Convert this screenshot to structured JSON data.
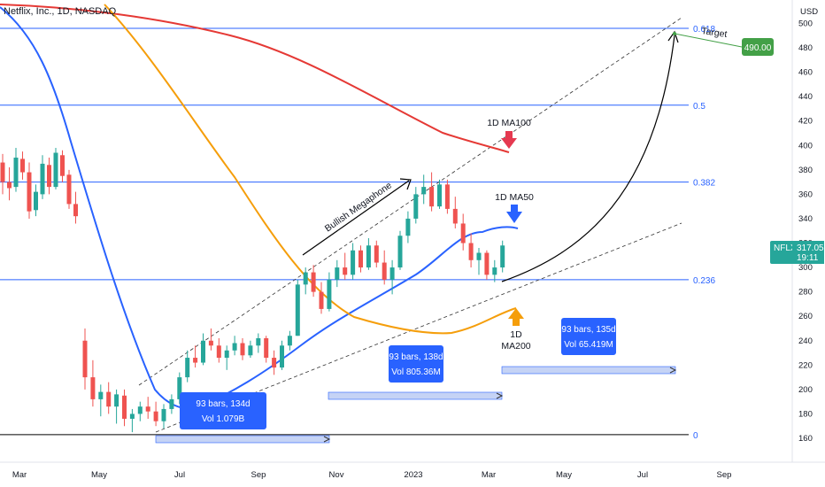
{
  "chart_data": {
    "type": "candlestick",
    "title": "Netflix, Inc., 1D, NASDAQ",
    "currency": "USD",
    "x_ticks": [
      "Mar",
      "May",
      "Jul",
      "Sep",
      "Nov",
      "2023",
      "Mar",
      "May",
      "Jul",
      "Sep"
    ],
    "y_ticks": [
      160,
      180,
      200,
      220,
      240,
      260,
      280,
      300,
      320,
      340,
      360,
      380,
      400,
      420,
      440,
      460,
      480,
      500
    ],
    "ylim": [
      150,
      510
    ],
    "fib_levels": [
      {
        "label": "0.618",
        "price": 496
      },
      {
        "label": "0.5",
        "price": 433
      },
      {
        "label": "0.382",
        "price": 370
      },
      {
        "label": "0.236",
        "price": 290
      },
      {
        "label": "0",
        "price": 163
      }
    ],
    "price_tag": {
      "symbol": "NFLX",
      "value": "317.05",
      "time": "19:11",
      "color": "#26a69a"
    },
    "target_tag": {
      "value": "490.00",
      "label": "Target",
      "color": "#43a047"
    },
    "annotations": {
      "megaphone": "Bullish Megaphone",
      "ma100": "1D MA100",
      "ma50": "1D MA50",
      "ma200_line1": "1D",
      "ma200_line2": "MA200"
    },
    "ranges": [
      {
        "line1": "93 bars, 134d",
        "line2": "Vol 1.079B"
      },
      {
        "line1": "93 bars, 138d",
        "line2": "Vol 805.36M"
      },
      {
        "line1": "93 bars, 135d",
        "line2": "Vol 65.419M"
      }
    ],
    "colors": {
      "up": "#26a69a",
      "down": "#ef5350",
      "ma50": "#2962ff",
      "ma100": "#e53935",
      "ma200": "#f59e0b",
      "fib": "#2962ff",
      "box": "#2962ff",
      "range": "#c5d3f5"
    },
    "candles_ohlc": [
      {
        "o": 386,
        "h": 393,
        "l": 360,
        "c": 370
      },
      {
        "o": 370,
        "h": 382,
        "l": 355,
        "c": 365
      },
      {
        "o": 366,
        "h": 398,
        "l": 362,
        "c": 390
      },
      {
        "o": 389,
        "h": 395,
        "l": 372,
        "c": 378
      },
      {
        "o": 378,
        "h": 386,
        "l": 340,
        "c": 346
      },
      {
        "o": 347,
        "h": 368,
        "l": 342,
        "c": 362
      },
      {
        "o": 360,
        "h": 392,
        "l": 356,
        "c": 385
      },
      {
        "o": 384,
        "h": 390,
        "l": 360,
        "c": 366
      },
      {
        "o": 366,
        "h": 398,
        "l": 364,
        "c": 394
      },
      {
        "o": 392,
        "h": 396,
        "l": 370,
        "c": 375
      },
      {
        "o": 376,
        "h": 380,
        "l": 348,
        "c": 352
      },
      {
        "o": 352,
        "h": 362,
        "l": 336,
        "c": 342
      },
      {
        "o": 240,
        "h": 250,
        "l": 200,
        "c": 210
      },
      {
        "o": 210,
        "h": 224,
        "l": 186,
        "c": 192
      },
      {
        "o": 192,
        "h": 204,
        "l": 178,
        "c": 198
      },
      {
        "o": 198,
        "h": 206,
        "l": 180,
        "c": 186
      },
      {
        "o": 186,
        "h": 200,
        "l": 172,
        "c": 196
      },
      {
        "o": 195,
        "h": 200,
        "l": 170,
        "c": 176
      },
      {
        "o": 176,
        "h": 184,
        "l": 165,
        "c": 180
      },
      {
        "o": 180,
        "h": 190,
        "l": 174,
        "c": 186
      },
      {
        "o": 186,
        "h": 194,
        "l": 176,
        "c": 182
      },
      {
        "o": 182,
        "h": 190,
        "l": 170,
        "c": 174
      },
      {
        "o": 174,
        "h": 188,
        "l": 168,
        "c": 184
      },
      {
        "o": 184,
        "h": 196,
        "l": 180,
        "c": 192
      },
      {
        "o": 192,
        "h": 214,
        "l": 188,
        "c": 210
      },
      {
        "o": 210,
        "h": 232,
        "l": 206,
        "c": 226
      },
      {
        "o": 226,
        "h": 236,
        "l": 218,
        "c": 222
      },
      {
        "o": 222,
        "h": 246,
        "l": 220,
        "c": 240
      },
      {
        "o": 240,
        "h": 250,
        "l": 232,
        "c": 236
      },
      {
        "o": 236,
        "h": 242,
        "l": 222,
        "c": 226
      },
      {
        "o": 226,
        "h": 236,
        "l": 216,
        "c": 232
      },
      {
        "o": 232,
        "h": 244,
        "l": 228,
        "c": 238
      },
      {
        "o": 238,
        "h": 242,
        "l": 224,
        "c": 228
      },
      {
        "o": 228,
        "h": 240,
        "l": 226,
        "c": 236
      },
      {
        "o": 236,
        "h": 246,
        "l": 230,
        "c": 242
      },
      {
        "o": 242,
        "h": 244,
        "l": 222,
        "c": 226
      },
      {
        "o": 226,
        "h": 232,
        "l": 212,
        "c": 218
      },
      {
        "o": 218,
        "h": 240,
        "l": 216,
        "c": 236
      },
      {
        "o": 236,
        "h": 248,
        "l": 232,
        "c": 244
      },
      {
        "o": 244,
        "h": 290,
        "l": 244,
        "c": 286
      },
      {
        "o": 286,
        "h": 300,
        "l": 278,
        "c": 296
      },
      {
        "o": 296,
        "h": 302,
        "l": 276,
        "c": 280
      },
      {
        "o": 280,
        "h": 288,
        "l": 262,
        "c": 266
      },
      {
        "o": 266,
        "h": 296,
        "l": 264,
        "c": 290
      },
      {
        "o": 290,
        "h": 306,
        "l": 284,
        "c": 300
      },
      {
        "o": 300,
        "h": 312,
        "l": 290,
        "c": 294
      },
      {
        "o": 294,
        "h": 320,
        "l": 290,
        "c": 314
      },
      {
        "o": 314,
        "h": 318,
        "l": 296,
        "c": 300
      },
      {
        "o": 300,
        "h": 324,
        "l": 298,
        "c": 318
      },
      {
        "o": 318,
        "h": 322,
        "l": 300,
        "c": 304
      },
      {
        "o": 304,
        "h": 314,
        "l": 286,
        "c": 290
      },
      {
        "o": 290,
        "h": 306,
        "l": 278,
        "c": 300
      },
      {
        "o": 300,
        "h": 330,
        "l": 298,
        "c": 326
      },
      {
        "o": 326,
        "h": 346,
        "l": 320,
        "c": 340
      },
      {
        "o": 340,
        "h": 366,
        "l": 336,
        "c": 360
      },
      {
        "o": 360,
        "h": 376,
        "l": 352,
        "c": 366
      },
      {
        "o": 366,
        "h": 378,
        "l": 346,
        "c": 350
      },
      {
        "o": 350,
        "h": 372,
        "l": 348,
        "c": 368
      },
      {
        "o": 368,
        "h": 372,
        "l": 344,
        "c": 348
      },
      {
        "o": 348,
        "h": 358,
        "l": 332,
        "c": 336
      },
      {
        "o": 336,
        "h": 344,
        "l": 314,
        "c": 320
      },
      {
        "o": 320,
        "h": 328,
        "l": 300,
        "c": 306
      },
      {
        "o": 306,
        "h": 316,
        "l": 294,
        "c": 312
      },
      {
        "o": 312,
        "h": 314,
        "l": 290,
        "c": 294
      },
      {
        "o": 294,
        "h": 306,
        "l": 288,
        "c": 300
      },
      {
        "o": 300,
        "h": 322,
        "l": 296,
        "c": 318
      }
    ]
  }
}
